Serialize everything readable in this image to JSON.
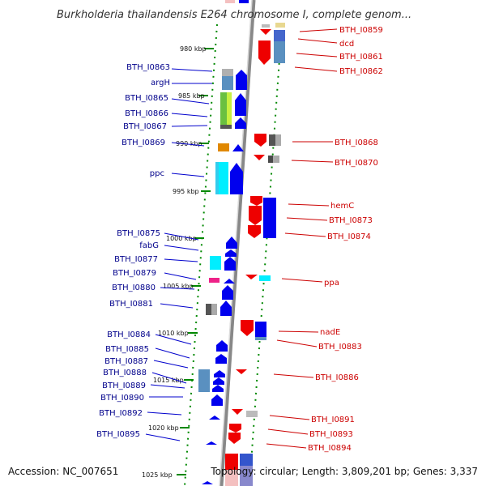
{
  "title": "Burkholderia thailandensis E264 chromosome I, complete genom...",
  "footer": {
    "accession": "Accession: NC_007651",
    "topology": "Topology: circular; Length: 3,809,201 bp; Genes: 3,337"
  },
  "kbp_ticks": [
    "980 kbp",
    "985 kbp",
    "990 kbp",
    "995 kbp",
    "1000 kbp",
    "1005 kbp",
    "1010 kbp",
    "1015 kbp",
    "1020 kbp",
    "1025 kbp"
  ],
  "left_genes": [
    "BTH_I0863",
    "argH",
    "BTH_I0865",
    "BTH_I0866",
    "BTH_I0867",
    "BTH_I0869",
    "ppc",
    "BTH_I0875",
    "fabG",
    "BTH_I0877",
    "BTH_I0879",
    "BTH_I0880",
    "BTH_I0881",
    "BTH_I0884",
    "BTH_I0885",
    "BTH_I0887",
    "BTH_I0888",
    "BTH_I0889",
    "BTH_I0890",
    "BTH_I0892",
    "BTH_I0895"
  ],
  "right_genes": [
    "BTH_I0859",
    "dcd",
    "BTH_I0861",
    "BTH_I0862",
    "BTH_I0868",
    "BTH_I0870",
    "hemC",
    "BTH_I0873",
    "BTH_I0874",
    "ppa",
    "nadE",
    "BTH_I0883",
    "BTH_I0886",
    "BTH_I0891",
    "BTH_I0893",
    "BTH_I0894"
  ],
  "colors": {
    "forward_strand": "#0000ee",
    "reverse_strand": "#ee0000",
    "backbone": "#888888",
    "scale_ticks": "#008800",
    "left_label": "#00008b",
    "right_label": "#cc0000"
  }
}
